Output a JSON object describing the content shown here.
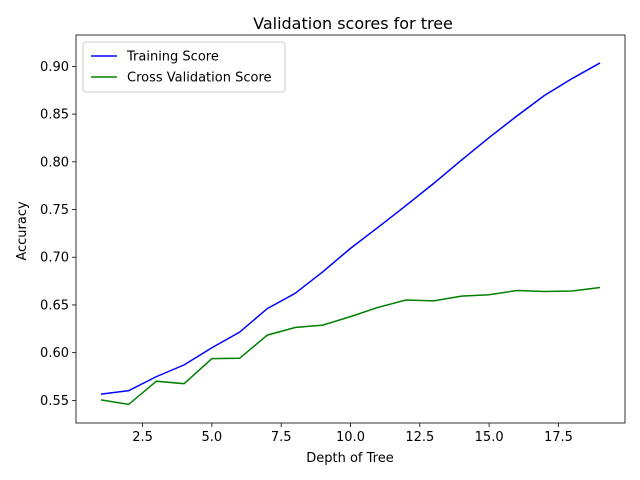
{
  "chart_data": {
    "type": "line",
    "title": "Validation scores for tree",
    "xlabel": "Depth of Tree",
    "ylabel": "Accuracy",
    "xlim": [
      0.1,
      19.9
    ],
    "ylim": [
      0.5263,
      0.9329
    ],
    "xticks": [
      2.5,
      5.0,
      7.5,
      10.0,
      12.5,
      15.0,
      17.5
    ],
    "xtick_labels": [
      "2.5",
      "5.0",
      "7.5",
      "10.0",
      "12.5",
      "15.0",
      "17.5"
    ],
    "yticks": [
      0.55,
      0.6,
      0.65,
      0.7,
      0.75,
      0.8,
      0.85,
      0.9
    ],
    "ytick_labels": [
      "0.55",
      "0.60",
      "0.65",
      "0.70",
      "0.75",
      "0.80",
      "0.85",
      "0.90"
    ],
    "grid": false,
    "legend": "top-left",
    "x": [
      1,
      2,
      3,
      4,
      5,
      6,
      7,
      8,
      9,
      10,
      11,
      12,
      13,
      14,
      15,
      16,
      17,
      18,
      19
    ],
    "series": [
      {
        "name": "Training Score",
        "color": "#0000ff",
        "values": [
          0.5566,
          0.5602,
          0.5749,
          0.5872,
          0.6052,
          0.6215,
          0.6462,
          0.6621,
          0.6847,
          0.7093,
          0.7315,
          0.7542,
          0.7774,
          0.8017,
          0.8254,
          0.848,
          0.8696,
          0.8874,
          0.9036
        ]
      },
      {
        "name": "Cross Validation Score",
        "color": "#008000",
        "values": [
          0.5505,
          0.5458,
          0.5701,
          0.5675,
          0.5937,
          0.5941,
          0.6184,
          0.6264,
          0.6289,
          0.6378,
          0.6475,
          0.6552,
          0.6543,
          0.6592,
          0.6607,
          0.6651,
          0.6641,
          0.6646,
          0.6683
        ]
      }
    ]
  }
}
